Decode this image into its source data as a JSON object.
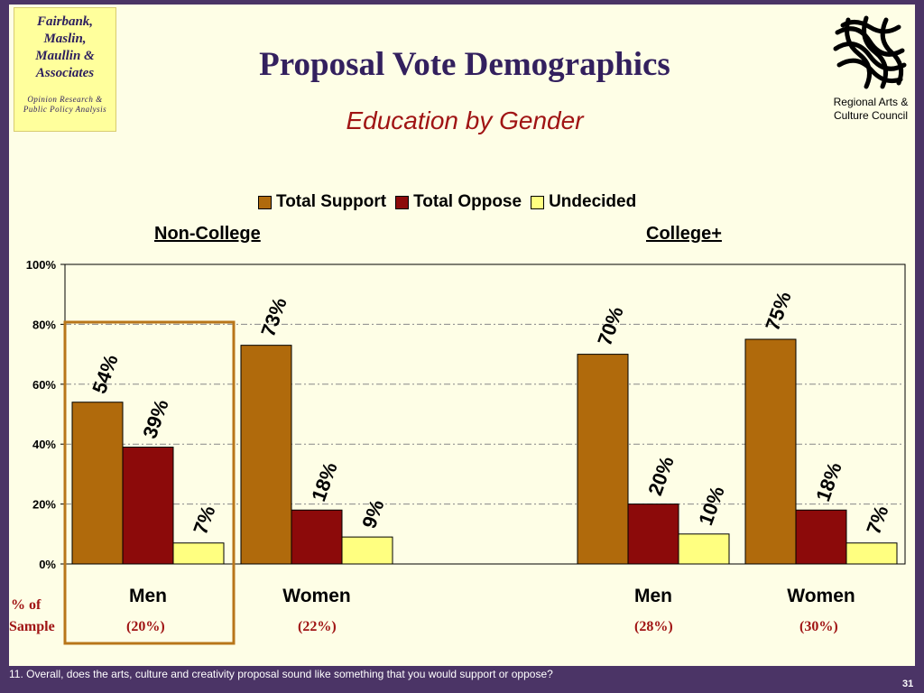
{
  "logo_left": {
    "firm_lines": [
      "Fairbank,",
      "Maslin,",
      "Maullin &",
      "Associates"
    ],
    "tagline_lines": [
      "Opinion Research &",
      "Public Policy Analysis"
    ]
  },
  "title": "Proposal Vote Demographics",
  "subtitle": "Education by Gender",
  "logo_right": {
    "icon": "regional-arts-lattice-logo",
    "lines": [
      "Regional Arts &",
      "Culture Council"
    ]
  },
  "sample_row_label": [
    "% of",
    "Sample"
  ],
  "footnote": "11. Overall, does the arts, culture and creativity proposal sound like something that you would support or oppose?",
  "page_number": "31",
  "colors": {
    "support": "#b06a0c",
    "oppose": "#8c0a0a",
    "undecided": "#ffff80",
    "highlight_box": "#b8761a"
  },
  "chart_data": {
    "type": "bar",
    "legend": [
      "Total Support",
      "Total Oppose",
      "Undecided"
    ],
    "legend_placement": "top",
    "groups": [
      "Non-College",
      "College+"
    ],
    "categories": [
      "Men",
      "Women",
      "Men",
      "Women"
    ],
    "category_groups": [
      "Non-College",
      "Non-College",
      "College+",
      "College+"
    ],
    "sample": [
      "(20%)",
      "(22%)",
      "(28%)",
      "(30%)"
    ],
    "series": [
      {
        "name": "Total Support",
        "values": [
          54,
          73,
          70,
          75
        ]
      },
      {
        "name": "Total Oppose",
        "values": [
          39,
          18,
          20,
          18
        ]
      },
      {
        "name": "Undecided",
        "values": [
          7,
          9,
          10,
          7
        ]
      }
    ],
    "ylim": [
      0,
      100
    ],
    "yticks": [
      "0%",
      "20%",
      "40%",
      "60%",
      "80%",
      "100%"
    ],
    "grid": true,
    "highlighted_category": "Men (Non-College)"
  }
}
